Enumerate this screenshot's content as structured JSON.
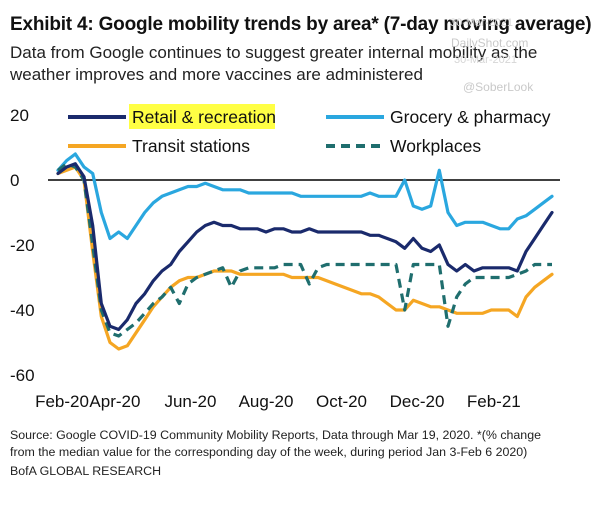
{
  "header": {
    "title": "Exhibit 4: Google mobility trends by area* (7-day moving average)",
    "subtitle": "Data from Google continues to suggest greater internal mobility as the weather improves and more vaccines are administered"
  },
  "watermarks": {
    "site": "DailyShot.com",
    "handle": "@SoberLook",
    "date": "30-Mar-2021",
    "date2": "30-Mar-2021"
  },
  "footer": {
    "source": "Source: Google COVID-19 Community Mobility Reports, Data through Mar 19, 2020. *(% change from the median value for the corresponding day of the week, during period Jan 3-Feb 6 2020)",
    "brand": "BofA GLOBAL RESEARCH"
  },
  "chart_data": {
    "type": "line",
    "x_tick_labels": [
      "Feb-20",
      "Apr-20",
      "Jun-20",
      "Aug-20",
      "Oct-20",
      "Dec-20",
      "Feb-21"
    ],
    "y_tick_labels": [
      "20",
      "0",
      "-20",
      "-40",
      "-60"
    ],
    "ylim": [
      -60,
      20
    ],
    "x_months": [
      "Feb-20",
      "Mar-20",
      "Apr-20",
      "May-20",
      "Jun-20",
      "Jul-20",
      "Aug-20",
      "Sep-20",
      "Oct-20",
      "Nov-20",
      "Dec-20",
      "Jan-21",
      "Feb-21",
      "Mar-21"
    ],
    "colors": {
      "retail": "#1a2a6c",
      "grocery": "#2aa7df",
      "transit": "#f5a623",
      "workplaces": "#1f6e6e",
      "zero": "#000000"
    },
    "series": [
      {
        "name": "Retail & recreation",
        "key": "retail",
        "style": "solid",
        "highlight": "#ffff44",
        "x": [
          "2020-02-15",
          "2020-02-22",
          "2020-02-29",
          "2020-03-07",
          "2020-03-14",
          "2020-03-21",
          "2020-03-28",
          "2020-04-04",
          "2020-04-11",
          "2020-04-18",
          "2020-04-25",
          "2020-05-02",
          "2020-05-09",
          "2020-05-16",
          "2020-05-23",
          "2020-05-30",
          "2020-06-06",
          "2020-06-13",
          "2020-06-20",
          "2020-06-27",
          "2020-07-04",
          "2020-07-11",
          "2020-07-18",
          "2020-07-25",
          "2020-08-01",
          "2020-08-08",
          "2020-08-15",
          "2020-08-22",
          "2020-08-29",
          "2020-09-05",
          "2020-09-12",
          "2020-09-19",
          "2020-09-26",
          "2020-10-03",
          "2020-10-10",
          "2020-10-17",
          "2020-10-24",
          "2020-10-31",
          "2020-11-07",
          "2020-11-14",
          "2020-11-21",
          "2020-11-28",
          "2020-12-05",
          "2020-12-12",
          "2020-12-19",
          "2020-12-26",
          "2021-01-02",
          "2021-01-09",
          "2021-01-16",
          "2021-01-23",
          "2021-01-30",
          "2021-02-06",
          "2021-02-13",
          "2021-02-20",
          "2021-02-27",
          "2021-03-06",
          "2021-03-13",
          "2021-03-20"
        ],
        "values": [
          2,
          4,
          5,
          1,
          -14,
          -38,
          -45,
          -46,
          -43,
          -38,
          -35,
          -31,
          -28,
          -26,
          -22,
          -19,
          -16,
          -14,
          -13,
          -14,
          -14,
          -15,
          -15,
          -15,
          -16,
          -15,
          -15,
          -16,
          -16,
          -15,
          -16,
          -16,
          -16,
          -16,
          -16,
          -16,
          -17,
          -17,
          -18,
          -19,
          -21,
          -18,
          -21,
          -22,
          -20,
          -26,
          -28,
          -26,
          -28,
          -27,
          -27,
          -27,
          -27,
          -28,
          -22,
          -18,
          -14,
          -10
        ]
      },
      {
        "name": "Grocery & pharmacy",
        "key": "grocery",
        "style": "solid",
        "x": [
          "2020-02-15",
          "2020-02-22",
          "2020-02-29",
          "2020-03-07",
          "2020-03-14",
          "2020-03-21",
          "2020-03-28",
          "2020-04-04",
          "2020-04-11",
          "2020-04-18",
          "2020-04-25",
          "2020-05-02",
          "2020-05-09",
          "2020-05-16",
          "2020-05-23",
          "2020-05-30",
          "2020-06-06",
          "2020-06-13",
          "2020-06-20",
          "2020-06-27",
          "2020-07-04",
          "2020-07-11",
          "2020-07-18",
          "2020-07-25",
          "2020-08-01",
          "2020-08-08",
          "2020-08-15",
          "2020-08-22",
          "2020-08-29",
          "2020-09-05",
          "2020-09-12",
          "2020-09-19",
          "2020-09-26",
          "2020-10-03",
          "2020-10-10",
          "2020-10-17",
          "2020-10-24",
          "2020-10-31",
          "2020-11-07",
          "2020-11-14",
          "2020-11-21",
          "2020-11-28",
          "2020-12-05",
          "2020-12-12",
          "2020-12-19",
          "2020-12-26",
          "2021-01-02",
          "2021-01-09",
          "2021-01-16",
          "2021-01-23",
          "2021-01-30",
          "2021-02-06",
          "2021-02-13",
          "2021-02-20",
          "2021-02-27",
          "2021-03-06",
          "2021-03-13",
          "2021-03-20"
        ],
        "values": [
          3,
          6,
          8,
          4,
          2,
          -10,
          -18,
          -16,
          -18,
          -14,
          -10,
          -7,
          -5,
          -4,
          -3,
          -2,
          -2,
          -1,
          -2,
          -3,
          -3,
          -3,
          -4,
          -4,
          -4,
          -4,
          -4,
          -4,
          -5,
          -5,
          -5,
          -5,
          -5,
          -5,
          -5,
          -5,
          -4,
          -5,
          -5,
          -5,
          0,
          -8,
          -9,
          -8,
          3,
          -10,
          -14,
          -13,
          -13,
          -13,
          -14,
          -15,
          -15,
          -12,
          -11,
          -9,
          -7,
          -5
        ]
      },
      {
        "name": "Transit stations",
        "key": "transit",
        "style": "solid",
        "x": [
          "2020-02-15",
          "2020-02-22",
          "2020-02-29",
          "2020-03-07",
          "2020-03-14",
          "2020-03-21",
          "2020-03-28",
          "2020-04-04",
          "2020-04-11",
          "2020-04-18",
          "2020-04-25",
          "2020-05-02",
          "2020-05-09",
          "2020-05-16",
          "2020-05-23",
          "2020-05-30",
          "2020-06-06",
          "2020-06-13",
          "2020-06-20",
          "2020-06-27",
          "2020-07-04",
          "2020-07-11",
          "2020-07-18",
          "2020-07-25",
          "2020-08-01",
          "2020-08-08",
          "2020-08-15",
          "2020-08-22",
          "2020-08-29",
          "2020-09-05",
          "2020-09-12",
          "2020-09-19",
          "2020-09-26",
          "2020-10-03",
          "2020-10-10",
          "2020-10-17",
          "2020-10-24",
          "2020-10-31",
          "2020-11-07",
          "2020-11-14",
          "2020-11-21",
          "2020-11-28",
          "2020-12-05",
          "2020-12-12",
          "2020-12-19",
          "2020-12-26",
          "2021-01-02",
          "2021-01-09",
          "2021-01-16",
          "2021-01-23",
          "2021-01-30",
          "2021-02-06",
          "2021-02-13",
          "2021-02-20",
          "2021-02-27",
          "2021-03-06",
          "2021-03-13",
          "2021-03-20"
        ],
        "values": [
          2,
          3,
          4,
          0,
          -22,
          -42,
          -50,
          -52,
          -51,
          -47,
          -43,
          -39,
          -36,
          -33,
          -31,
          -30,
          -30,
          -29,
          -28,
          -28,
          -28,
          -29,
          -29,
          -29,
          -29,
          -29,
          -29,
          -30,
          -30,
          -30,
          -30,
          -31,
          -32,
          -33,
          -34,
          -35,
          -35,
          -36,
          -38,
          -40,
          -40,
          -37,
          -38,
          -39,
          -39,
          -40,
          -41,
          -41,
          -41,
          -41,
          -40,
          -40,
          -40,
          -42,
          -36,
          -33,
          -31,
          -29
        ]
      },
      {
        "name": "Workplaces",
        "key": "workplaces",
        "style": "dashed",
        "x": [
          "2020-02-15",
          "2020-02-22",
          "2020-02-29",
          "2020-03-07",
          "2020-03-14",
          "2020-03-21",
          "2020-03-28",
          "2020-04-04",
          "2020-04-11",
          "2020-04-18",
          "2020-04-25",
          "2020-05-02",
          "2020-05-09",
          "2020-05-16",
          "2020-05-23",
          "2020-05-30",
          "2020-06-06",
          "2020-06-13",
          "2020-06-20",
          "2020-06-27",
          "2020-07-04",
          "2020-07-11",
          "2020-07-18",
          "2020-07-25",
          "2020-08-01",
          "2020-08-08",
          "2020-08-15",
          "2020-08-22",
          "2020-08-29",
          "2020-09-05",
          "2020-09-12",
          "2020-09-19",
          "2020-09-26",
          "2020-10-03",
          "2020-10-10",
          "2020-10-17",
          "2020-10-24",
          "2020-10-31",
          "2020-11-07",
          "2020-11-14",
          "2020-11-21",
          "2020-11-28",
          "2020-12-05",
          "2020-12-12",
          "2020-12-19",
          "2020-12-26",
          "2021-01-02",
          "2021-01-09",
          "2021-01-16",
          "2021-01-23",
          "2021-01-30",
          "2021-02-06",
          "2021-02-13",
          "2021-02-20",
          "2021-02-27",
          "2021-03-06",
          "2021-03-13",
          "2021-03-20"
        ],
        "values": [
          3,
          5,
          4,
          0,
          -20,
          -40,
          -47,
          -48,
          -46,
          -44,
          -41,
          -38,
          -36,
          -33,
          -38,
          -32,
          -30,
          -29,
          -28,
          -27,
          -33,
          -28,
          -27,
          -27,
          -27,
          -27,
          -26,
          -26,
          -26,
          -32,
          -27,
          -26,
          -26,
          -26,
          -26,
          -26,
          -26,
          -26,
          -26,
          -26,
          -40,
          -26,
          -26,
          -26,
          -26,
          -45,
          -36,
          -32,
          -30,
          -30,
          -30,
          -30,
          -30,
          -29,
          -28,
          -26,
          -26,
          -26
        ]
      }
    ],
    "legend": "top",
    "grid": false
  }
}
